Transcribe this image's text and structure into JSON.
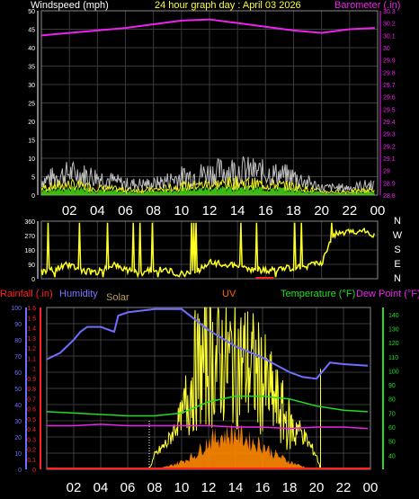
{
  "header": {
    "wind_label": "Windspeed (mph)",
    "title": "24 hour graph day : April 03 2026",
    "baro_label": "Barometer (.in)"
  },
  "lower_header": {
    "rain_label": "Rainfall (.in)",
    "humidity_label": "Humidity",
    "solar_label": "Solar",
    "uv_label": "UV",
    "temp_label": "Temperature (°F)",
    "dew_label": "Dew Point (°F)"
  },
  "colors": {
    "wind": "#ffffff",
    "gust": "#c0c0c0",
    "wind_green": "#44dd11",
    "baro": "#ee22ee",
    "dir": "#ffff22",
    "rain": "#ff2222",
    "humidity": "#6f6fff",
    "solar": "#ffff33",
    "uv": "#ff8800",
    "temp": "#22dd22",
    "dew": "#ee22ee",
    "grid": "#3a3a3a"
  },
  "chart_data": [
    {
      "type": "line",
      "name": "wind-baro",
      "title": "24 hour graph day : April 03 2026",
      "x_ticks": [
        "02",
        "04",
        "06",
        "08",
        "10",
        "12",
        "14",
        "16",
        "18",
        "20",
        "22",
        "00"
      ],
      "y_left": {
        "label": "Windspeed (mph)",
        "min": 0,
        "max": 50,
        "ticks": [
          0,
          5,
          10,
          15,
          20,
          25,
          30,
          35,
          40,
          45,
          50
        ]
      },
      "y_right": {
        "label": "Barometer (.in)",
        "min": 28.8,
        "max": 30.3,
        "ticks": [
          "28.8",
          "28.9",
          "29",
          "29.1",
          "29.2",
          "29.3",
          "29.4",
          "29.5",
          "29.6",
          "29.7",
          "29.8",
          "29.9",
          "30",
          "30.1",
          "30.2",
          "30.3"
        ]
      },
      "series": [
        {
          "name": "Barometer",
          "axis": "right",
          "x": [
            0,
            2,
            4,
            6,
            8,
            10,
            12,
            14,
            16,
            18,
            20,
            22,
            23.8
          ],
          "values": [
            30.1,
            30.12,
            30.14,
            30.16,
            30.19,
            30.22,
            30.23,
            30.2,
            30.17,
            30.14,
            30.12,
            30.15,
            30.16
          ]
        },
        {
          "name": "Gust",
          "axis": "left",
          "x": [
            0,
            2,
            4,
            6,
            8,
            10,
            12,
            14,
            16,
            18,
            20,
            22,
            23.8
          ],
          "values": [
            4,
            6,
            5,
            3,
            3,
            5,
            6,
            7,
            6,
            5,
            2,
            2,
            3
          ]
        },
        {
          "name": "Wind",
          "axis": "left",
          "x": [
            0,
            2,
            4,
            6,
            8,
            10,
            12,
            14,
            16,
            18,
            20,
            22,
            23.8
          ],
          "values": [
            2,
            3,
            2,
            1.5,
            1.5,
            2.5,
            3,
            3.5,
            3,
            2.5,
            1,
            1,
            1.5
          ]
        }
      ]
    },
    {
      "type": "line",
      "name": "wind-direction",
      "y_left": {
        "min": 0,
        "max": 360,
        "ticks": [
          0,
          90,
          180,
          270,
          360
        ]
      },
      "y_right_labels": [
        "N",
        "W",
        "S",
        "E",
        "N"
      ],
      "series": [
        {
          "name": "Direction",
          "x": [
            0,
            1,
            2,
            3,
            4,
            5,
            6,
            7,
            8,
            9,
            10,
            11,
            12,
            13,
            14,
            15,
            16,
            17,
            18,
            19,
            20,
            20.5,
            21,
            22,
            23,
            23.8
          ],
          "values": [
            40,
            60,
            90,
            50,
            40,
            90,
            60,
            30,
            60,
            50,
            30,
            40,
            100,
            90,
            80,
            60,
            50,
            60,
            70,
            80,
            100,
            200,
            280,
            290,
            300,
            270
          ]
        }
      ]
    },
    {
      "type": "line",
      "name": "temp-hum-solar",
      "x_ticks": [
        "02",
        "04",
        "06",
        "08",
        "10",
        "12",
        "14",
        "16",
        "18",
        "20",
        "22",
        "00"
      ],
      "y_left_humidity": {
        "min": 0,
        "max": 100,
        "ticks": [
          0,
          10,
          20,
          30,
          40,
          50,
          60,
          70,
          80,
          90,
          100
        ]
      },
      "y_left_rain": {
        "min": 0,
        "max": 1.6,
        "ticks": [
          "0",
          "0.1",
          "0.2",
          "0.3",
          "0.4",
          "0.5",
          "0.6",
          "0.7",
          "0.8",
          "0.9",
          "1",
          "1.1",
          "1.2",
          "1.3",
          "1.4",
          "1.5",
          "1.6"
        ]
      },
      "y_right_temp": {
        "min": 30,
        "max": 145,
        "ticks": [
          40,
          50,
          60,
          70,
          80,
          90,
          100,
          110,
          120,
          130,
          140
        ]
      },
      "series": [
        {
          "name": "Humidity",
          "axis": "humidity",
          "x": [
            0,
            1,
            2,
            2.5,
            3,
            4,
            5,
            5.3,
            6,
            8,
            10,
            12,
            14,
            16,
            18,
            19,
            20,
            21,
            22,
            23.8
          ],
          "values": [
            68,
            72,
            80,
            85,
            88,
            88,
            85,
            95,
            97,
            99,
            99,
            86,
            76,
            69,
            60,
            57,
            56,
            66,
            65,
            64
          ]
        },
        {
          "name": "Temperature",
          "axis": "temp",
          "x": [
            0,
            2,
            4,
            6,
            8,
            10,
            12,
            14,
            16,
            18,
            20,
            22,
            23.8
          ],
          "values": [
            71,
            70,
            69,
            68,
            68,
            70,
            78,
            82,
            82,
            80,
            75,
            72,
            71
          ]
        },
        {
          "name": "Dew Point",
          "axis": "temp",
          "x": [
            0,
            2,
            4,
            6,
            8,
            10,
            12,
            14,
            16,
            18,
            20,
            22,
            23.8
          ],
          "values": [
            61,
            61,
            62,
            61,
            61,
            61,
            61,
            60,
            60,
            59,
            60,
            60,
            59
          ]
        },
        {
          "name": "Solar",
          "axis": "humidity",
          "x": [
            7.6,
            8,
            9,
            10,
            10.5,
            11,
            12,
            13,
            14,
            15,
            16,
            17,
            18,
            19,
            20,
            20.3
          ],
          "values": [
            0,
            10,
            20,
            40,
            70,
            90,
            99,
            99,
            99,
            95,
            80,
            60,
            40,
            25,
            10,
            0
          ]
        },
        {
          "name": "UV",
          "axis": "rain",
          "x": [
            8,
            9,
            10,
            11,
            12,
            13,
            14,
            15,
            16,
            17,
            18,
            19,
            20
          ],
          "values": [
            0,
            0.03,
            0.08,
            0.15,
            0.3,
            0.35,
            0.38,
            0.3,
            0.25,
            0.15,
            0.08,
            0.03,
            0
          ]
        }
      ]
    }
  ]
}
